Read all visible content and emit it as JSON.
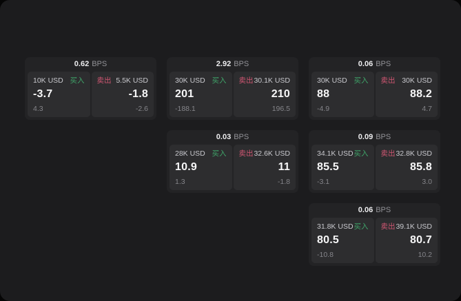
{
  "labels": {
    "bps_unit": "BPS",
    "buy": "买入",
    "sell": "卖出"
  },
  "colors": {
    "panel_background": "#1c1c1e",
    "card_background": "#232325",
    "tile_background": "#2d2d2f",
    "buy_green": "#3fa469",
    "sell_red": "#d05672"
  },
  "cards": [
    {
      "row": 1,
      "col": 1,
      "bps": "0.62",
      "buy": {
        "amount": "10K USD",
        "value": "-3.7",
        "change": "4.3"
      },
      "sell": {
        "amount": "5.5K USD",
        "value": "-1.8",
        "change": "-2.6"
      }
    },
    {
      "row": 1,
      "col": 2,
      "bps": "2.92",
      "buy": {
        "amount": "30K USD",
        "value": "201",
        "change": "-188.1"
      },
      "sell": {
        "amount": "30.1K USD",
        "value": "210",
        "change": "196.5"
      }
    },
    {
      "row": 1,
      "col": 3,
      "bps": "0.06",
      "buy": {
        "amount": "30K USD",
        "value": "88",
        "change": "-4.9"
      },
      "sell": {
        "amount": "30K USD",
        "value": "88.2",
        "change": "4.7"
      }
    },
    {
      "row": 2,
      "col": 2,
      "bps": "0.03",
      "buy": {
        "amount": "28K USD",
        "value": "10.9",
        "change": "1.3"
      },
      "sell": {
        "amount": "32.6K USD",
        "value": "11",
        "change": "-1.8"
      }
    },
    {
      "row": 2,
      "col": 3,
      "bps": "0.09",
      "buy": {
        "amount": "34.1K USD",
        "value": "85.5",
        "change": "-3.1"
      },
      "sell": {
        "amount": "32.8K USD",
        "value": "85.8",
        "change": "3.0"
      }
    },
    {
      "row": 3,
      "col": 3,
      "bps": "0.06",
      "buy": {
        "amount": "31.8K USD",
        "value": "80.5",
        "change": "-10.8"
      },
      "sell": {
        "amount": "39.1K USD",
        "value": "80.7",
        "change": "10.2"
      }
    }
  ]
}
